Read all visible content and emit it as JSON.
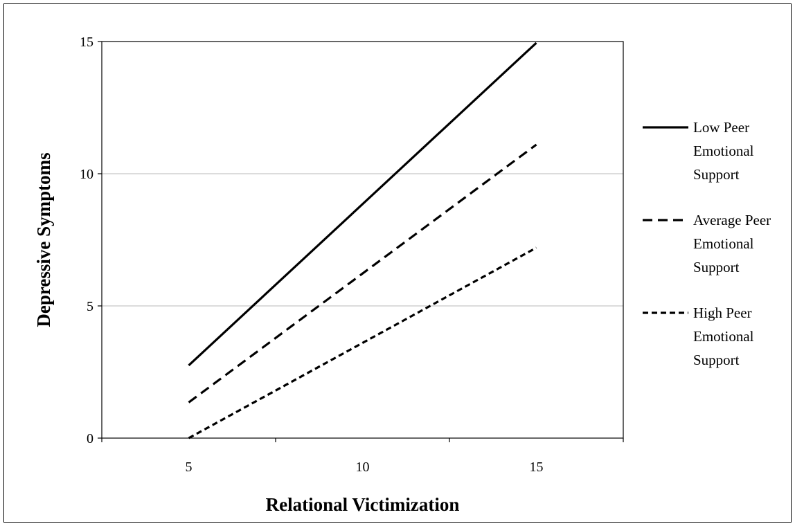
{
  "chart_data": {
    "type": "line",
    "title": "",
    "xlabel": "Relational Victimization",
    "ylabel": "Depressive Symptoms",
    "x": [
      5,
      15
    ],
    "xlim": [
      2.5,
      17.5
    ],
    "ylim": [
      0,
      15
    ],
    "xticks": [
      5,
      10,
      15
    ],
    "yticks": [
      0,
      5,
      10,
      15
    ],
    "grid": "horizontal",
    "legend_position": "right",
    "series": [
      {
        "name": "Low Peer Emotional Support",
        "legend_lines": [
          "Low Peer",
          "Emotional",
          "Support"
        ],
        "values": [
          2.75,
          14.95
        ],
        "dash": "solid"
      },
      {
        "name": "Average Peer Emotional Support",
        "legend_lines": [
          "Average Peer",
          "Emotional",
          "Support"
        ],
        "values": [
          1.35,
          11.1
        ],
        "dash": "long-dash"
      },
      {
        "name": "High Peer Emotional Support",
        "legend_lines": [
          "High Peer",
          "Emotional",
          "Support"
        ],
        "values": [
          0.0,
          7.2
        ],
        "dash": "short-dash"
      }
    ]
  }
}
